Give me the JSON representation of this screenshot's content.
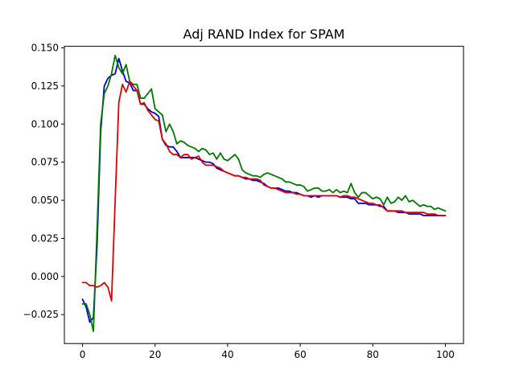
{
  "chart_data": {
    "type": "line",
    "title": "Adj RAND Index for SPAM",
    "xlabel": "",
    "ylabel": "",
    "xlim": [
      -5,
      105
    ],
    "ylim": [
      -0.044,
      0.151
    ],
    "grid": false,
    "legend": "none",
    "xticks": [
      0,
      20,
      40,
      60,
      80,
      100
    ],
    "xtick_labels": [
      "0",
      "20",
      "40",
      "60",
      "80",
      "100"
    ],
    "yticks": [
      -0.025,
      0.0,
      0.025,
      0.05,
      0.075,
      0.1,
      0.125,
      0.15
    ],
    "ytick_labels": [
      "−0.025",
      "0.000",
      "0.025",
      "0.050",
      "0.075",
      "0.100",
      "0.125",
      "0.150"
    ],
    "series": [
      {
        "color": "#0000cc",
        "x": [
          0,
          1,
          2,
          3,
          4,
          5,
          6,
          7,
          8,
          9,
          10,
          11,
          12,
          13,
          14,
          15,
          16,
          17,
          18,
          19,
          20,
          21,
          22,
          23,
          24,
          25,
          26,
          27,
          28,
          29,
          30,
          31,
          32,
          33,
          34,
          35,
          36,
          37,
          38,
          39,
          40,
          41,
          42,
          43,
          44,
          45,
          46,
          47,
          48,
          49,
          50,
          51,
          52,
          53,
          54,
          55,
          56,
          57,
          58,
          59,
          60,
          61,
          62,
          63,
          64,
          65,
          66,
          67,
          68,
          69,
          70,
          71,
          72,
          73,
          74,
          75,
          76,
          77,
          78,
          79,
          80,
          81,
          82,
          83,
          84,
          85,
          86,
          87,
          88,
          89,
          90,
          91,
          92,
          93,
          94,
          95,
          96,
          97,
          98,
          99,
          100
        ],
        "y": [
          -0.015,
          -0.02,
          -0.03,
          -0.027,
          0.02,
          0.095,
          0.125,
          0.13,
          0.132,
          0.133,
          0.143,
          0.135,
          0.128,
          0.127,
          0.122,
          0.122,
          0.113,
          0.113,
          0.11,
          0.108,
          0.107,
          0.105,
          0.09,
          0.086,
          0.085,
          0.085,
          0.082,
          0.078,
          0.078,
          0.078,
          0.078,
          0.078,
          0.077,
          0.076,
          0.075,
          0.075,
          0.074,
          0.071,
          0.07,
          0.069,
          0.068,
          0.067,
          0.066,
          0.066,
          0.065,
          0.064,
          0.064,
          0.063,
          0.063,
          0.062,
          0.061,
          0.059,
          0.058,
          0.058,
          0.058,
          0.057,
          0.056,
          0.056,
          0.055,
          0.055,
          0.054,
          0.053,
          0.053,
          0.052,
          0.053,
          0.052,
          0.053,
          0.053,
          0.053,
          0.053,
          0.053,
          0.052,
          0.052,
          0.052,
          0.051,
          0.051,
          0.048,
          0.048,
          0.048,
          0.047,
          0.047,
          0.047,
          0.046,
          0.046,
          0.043,
          0.043,
          0.043,
          0.042,
          0.042,
          0.042,
          0.041,
          0.041,
          0.041,
          0.041,
          0.04,
          0.04,
          0.04,
          0.04,
          0.04,
          0.04,
          0.04
        ]
      },
      {
        "color": "#007700",
        "x": [
          0,
          1,
          2,
          3,
          4,
          5,
          6,
          7,
          8,
          9,
          10,
          11,
          12,
          13,
          14,
          15,
          16,
          17,
          18,
          19,
          20,
          21,
          22,
          23,
          24,
          25,
          26,
          27,
          28,
          29,
          30,
          31,
          32,
          33,
          34,
          35,
          36,
          37,
          38,
          39,
          40,
          41,
          42,
          43,
          44,
          45,
          46,
          47,
          48,
          49,
          50,
          51,
          52,
          53,
          54,
          55,
          56,
          57,
          58,
          59,
          60,
          61,
          62,
          63,
          64,
          65,
          66,
          67,
          68,
          69,
          70,
          71,
          72,
          73,
          74,
          75,
          76,
          77,
          78,
          79,
          80,
          81,
          82,
          83,
          84,
          85,
          86,
          87,
          88,
          89,
          90,
          91,
          92,
          93,
          94,
          95,
          96,
          97,
          98,
          99,
          100
        ],
        "y": [
          -0.018,
          -0.018,
          -0.025,
          -0.036,
          0.03,
          0.1,
          0.12,
          0.125,
          0.133,
          0.145,
          0.137,
          0.133,
          0.139,
          0.128,
          0.126,
          0.126,
          0.117,
          0.117,
          0.12,
          0.123,
          0.11,
          0.108,
          0.106,
          0.095,
          0.1,
          0.095,
          0.087,
          0.089,
          0.088,
          0.086,
          0.085,
          0.084,
          0.082,
          0.084,
          0.083,
          0.08,
          0.081,
          0.077,
          0.081,
          0.077,
          0.076,
          0.078,
          0.08,
          0.077,
          0.07,
          0.068,
          0.067,
          0.066,
          0.066,
          0.065,
          0.067,
          0.068,
          0.067,
          0.066,
          0.065,
          0.064,
          0.062,
          0.062,
          0.061,
          0.06,
          0.06,
          0.059,
          0.056,
          0.057,
          0.058,
          0.058,
          0.056,
          0.056,
          0.057,
          0.055,
          0.057,
          0.055,
          0.056,
          0.055,
          0.061,
          0.055,
          0.052,
          0.055,
          0.055,
          0.053,
          0.051,
          0.052,
          0.051,
          0.047,
          0.052,
          0.048,
          0.049,
          0.052,
          0.05,
          0.053,
          0.049,
          0.05,
          0.048,
          0.046,
          0.047,
          0.046,
          0.046,
          0.044,
          0.045,
          0.044,
          0.043
        ]
      },
      {
        "color": "#dd0000",
        "x": [
          0,
          1,
          2,
          3,
          4,
          5,
          6,
          7,
          8,
          9,
          10,
          11,
          12,
          13,
          14,
          15,
          16,
          17,
          18,
          19,
          20,
          21,
          22,
          23,
          24,
          25,
          26,
          27,
          28,
          29,
          30,
          31,
          32,
          33,
          34,
          35,
          36,
          37,
          38,
          39,
          40,
          41,
          42,
          43,
          44,
          45,
          46,
          47,
          48,
          49,
          50,
          51,
          52,
          53,
          54,
          55,
          56,
          57,
          58,
          59,
          60,
          61,
          62,
          63,
          64,
          65,
          66,
          67,
          68,
          69,
          70,
          71,
          72,
          73,
          74,
          75,
          76,
          77,
          78,
          79,
          80,
          81,
          82,
          83,
          84,
          85,
          86,
          87,
          88,
          89,
          90,
          91,
          92,
          93,
          94,
          95,
          96,
          97,
          98,
          99,
          100
        ],
        "y": [
          -0.004,
          -0.004,
          -0.006,
          -0.006,
          -0.007,
          -0.006,
          -0.004,
          -0.007,
          -0.016,
          0.05,
          0.114,
          0.126,
          0.121,
          0.128,
          0.125,
          0.122,
          0.113,
          0.114,
          0.109,
          0.106,
          0.103,
          0.102,
          0.09,
          0.087,
          0.082,
          0.08,
          0.08,
          0.078,
          0.08,
          0.08,
          0.077,
          0.078,
          0.079,
          0.075,
          0.073,
          0.073,
          0.073,
          0.072,
          0.071,
          0.069,
          0.068,
          0.067,
          0.066,
          0.066,
          0.065,
          0.065,
          0.064,
          0.064,
          0.064,
          0.063,
          0.06,
          0.059,
          0.058,
          0.058,
          0.057,
          0.056,
          0.055,
          0.055,
          0.055,
          0.054,
          0.054,
          0.053,
          0.053,
          0.053,
          0.053,
          0.053,
          0.053,
          0.053,
          0.053,
          0.053,
          0.053,
          0.052,
          0.053,
          0.053,
          0.052,
          0.052,
          0.051,
          0.05,
          0.049,
          0.048,
          0.048,
          0.047,
          0.047,
          0.045,
          0.043,
          0.043,
          0.043,
          0.043,
          0.043,
          0.042,
          0.042,
          0.042,
          0.042,
          0.042,
          0.042,
          0.041,
          0.041,
          0.041,
          0.04,
          0.04,
          0.04
        ]
      }
    ]
  }
}
